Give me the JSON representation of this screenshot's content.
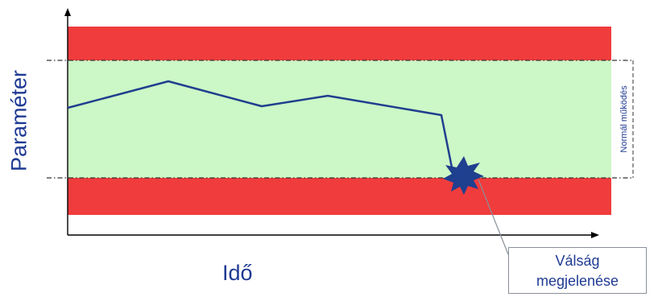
{
  "diagram": {
    "y_axis_label": "Paraméter",
    "x_axis_label": "Idő",
    "band_label": "Normál működés",
    "callout": {
      "line1": "Válság",
      "line2": "megjelenése"
    },
    "colors": {
      "danger_band": "#f03c3c",
      "normal_band": "#ccf7c6",
      "line": "#1f3f8f",
      "axis": "#000000",
      "label_text": "#1f3a93"
    }
  }
}
